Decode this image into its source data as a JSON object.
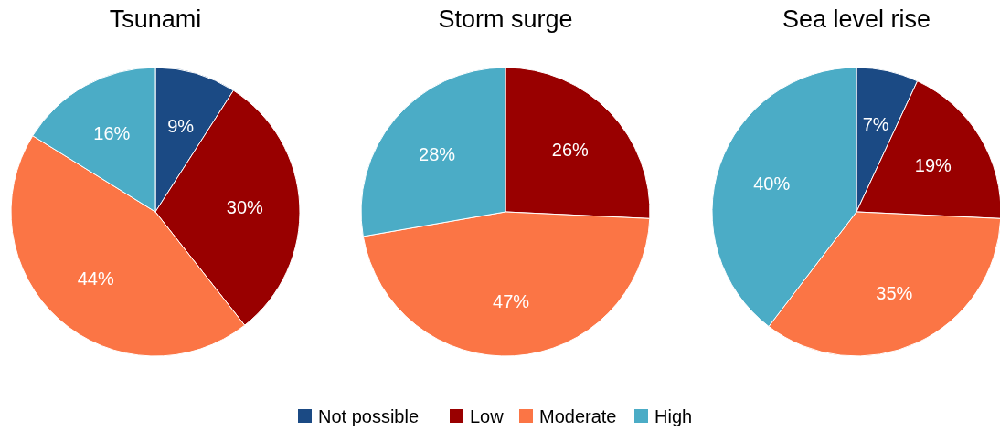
{
  "chart_data": [
    {
      "type": "pie",
      "title": "Tsunami",
      "categories": [
        "Not possible",
        "Low",
        "Moderate",
        "High"
      ],
      "values": [
        9,
        30,
        44,
        16
      ],
      "colors": [
        "#1b4a84",
        "#990000",
        "#fb7545",
        "#4bacc6"
      ],
      "value_labels": [
        "9%",
        "30%",
        "44%",
        "16%"
      ],
      "legend": "bottom"
    },
    {
      "type": "pie",
      "title": "Storm surge",
      "categories": [
        null,
        null,
        null,
        null
      ],
      "values": [
        0,
        26,
        47,
        28
      ],
      "colors": [
        "#1b4a84",
        "#990000",
        "#fb7545",
        "#4bacc6"
      ],
      "value_labels": [
        null,
        "26%",
        "47%",
        "28%"
      ]
    },
    {
      "type": "pie",
      "title": "Sea level rise",
      "categories": [
        null,
        null,
        null,
        null
      ],
      "values": [
        7,
        19,
        35,
        40
      ],
      "colors": [
        "#1b4a84",
        "#990000",
        "#fb7545",
        "#4bacc6"
      ],
      "value_labels": [
        "7%",
        "19%",
        "35%",
        "40%"
      ]
    }
  ]
}
